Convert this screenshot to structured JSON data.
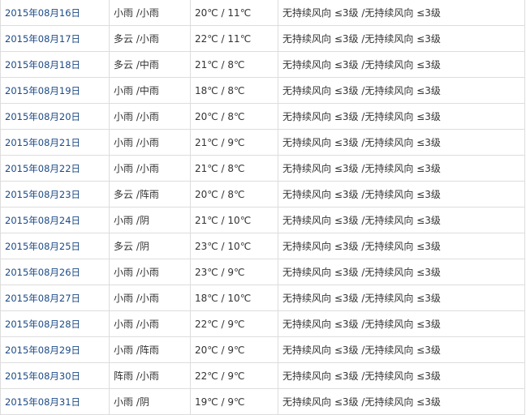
{
  "rows": [
    {
      "date": "2015年08月16日",
      "weather": "小雨 /小雨",
      "temp": "20℃ / 11℃",
      "wind": "无持续风向 ≤3级 /无持续风向 ≤3级"
    },
    {
      "date": "2015年08月17日",
      "weather": "多云 /小雨",
      "temp": "22℃ / 11℃",
      "wind": "无持续风向 ≤3级 /无持续风向 ≤3级"
    },
    {
      "date": "2015年08月18日",
      "weather": "多云 /中雨",
      "temp": "21℃ / 8℃",
      "wind": "无持续风向 ≤3级 /无持续风向 ≤3级"
    },
    {
      "date": "2015年08月19日",
      "weather": "小雨 /中雨",
      "temp": "18℃ / 8℃",
      "wind": "无持续风向 ≤3级 /无持续风向 ≤3级"
    },
    {
      "date": "2015年08月20日",
      "weather": "小雨 /小雨",
      "temp": "20℃ / 8℃",
      "wind": "无持续风向 ≤3级 /无持续风向 ≤3级"
    },
    {
      "date": "2015年08月21日",
      "weather": "小雨 /小雨",
      "temp": "21℃ / 9℃",
      "wind": "无持续风向 ≤3级 /无持续风向 ≤3级"
    },
    {
      "date": "2015年08月22日",
      "weather": "小雨 /小雨",
      "temp": "21℃ / 8℃",
      "wind": "无持续风向 ≤3级 /无持续风向 ≤3级"
    },
    {
      "date": "2015年08月23日",
      "weather": "多云 /阵雨",
      "temp": "20℃ / 8℃",
      "wind": "无持续风向 ≤3级 /无持续风向 ≤3级"
    },
    {
      "date": "2015年08月24日",
      "weather": "小雨 /阴",
      "temp": "21℃ / 10℃",
      "wind": "无持续风向 ≤3级 /无持续风向 ≤3级"
    },
    {
      "date": "2015年08月25日",
      "weather": "多云 /阴",
      "temp": "23℃ / 10℃",
      "wind": "无持续风向 ≤3级 /无持续风向 ≤3级"
    },
    {
      "date": "2015年08月26日",
      "weather": "小雨 /小雨",
      "temp": "23℃ / 9℃",
      "wind": "无持续风向 ≤3级 /无持续风向 ≤3级"
    },
    {
      "date": "2015年08月27日",
      "weather": "小雨 /小雨",
      "temp": "18℃ / 10℃",
      "wind": "无持续风向 ≤3级 /无持续风向 ≤3级"
    },
    {
      "date": "2015年08月28日",
      "weather": "小雨 /小雨",
      "temp": "22℃ / 9℃",
      "wind": "无持续风向 ≤3级 /无持续风向 ≤3级"
    },
    {
      "date": "2015年08月29日",
      "weather": "小雨 /阵雨",
      "temp": "20℃ / 9℃",
      "wind": "无持续风向 ≤3级 /无持续风向 ≤3级"
    },
    {
      "date": "2015年08月30日",
      "weather": "阵雨 /小雨",
      "temp": "22℃ / 9℃",
      "wind": "无持续风向 ≤3级 /无持续风向 ≤3级"
    },
    {
      "date": "2015年08月31日",
      "weather": "小雨 /阴",
      "temp": "19℃ / 9℃",
      "wind": "无持续风向 ≤3级 /无持续风向 ≤3级"
    }
  ],
  "colors": {
    "link": "#1c4a86",
    "border": "#dddddd",
    "text": "#333333"
  }
}
